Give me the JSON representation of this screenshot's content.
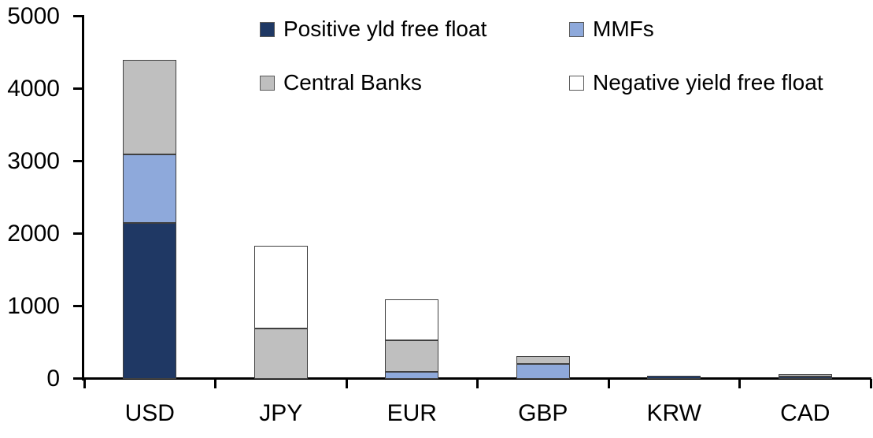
{
  "chart_data": {
    "type": "bar",
    "stacked": true,
    "title": "",
    "xlabel": "",
    "ylabel": "",
    "categories": [
      "USD",
      "JPY",
      "EUR",
      "GBP",
      "KRW",
      "CAD"
    ],
    "series": [
      {
        "name": "Positive yld free float",
        "color": "#1F3864",
        "values": [
          2150,
          0,
          0,
          0,
          40,
          30
        ]
      },
      {
        "name": "MMFs",
        "color": "#8EA9DB",
        "values": [
          950,
          0,
          100,
          210,
          0,
          0
        ]
      },
      {
        "name": "Central Banks",
        "color": "#BFBFBF",
        "values": [
          1300,
          700,
          430,
          110,
          0,
          30
        ]
      },
      {
        "name": "Negative yield free float",
        "color": "#FFFFFF",
        "values": [
          0,
          1140,
          570,
          0,
          0,
          0
        ]
      }
    ],
    "totals": [
      4400,
      1840,
      1100,
      320,
      40,
      60
    ],
    "ylim": [
      0,
      5000
    ],
    "yticks": [
      0,
      1000,
      2000,
      3000,
      4000,
      5000
    ],
    "grid": "off",
    "legend_position": "top",
    "axis_color": "#000000",
    "segment_border_color": "#404040",
    "text_color": "#000000"
  }
}
